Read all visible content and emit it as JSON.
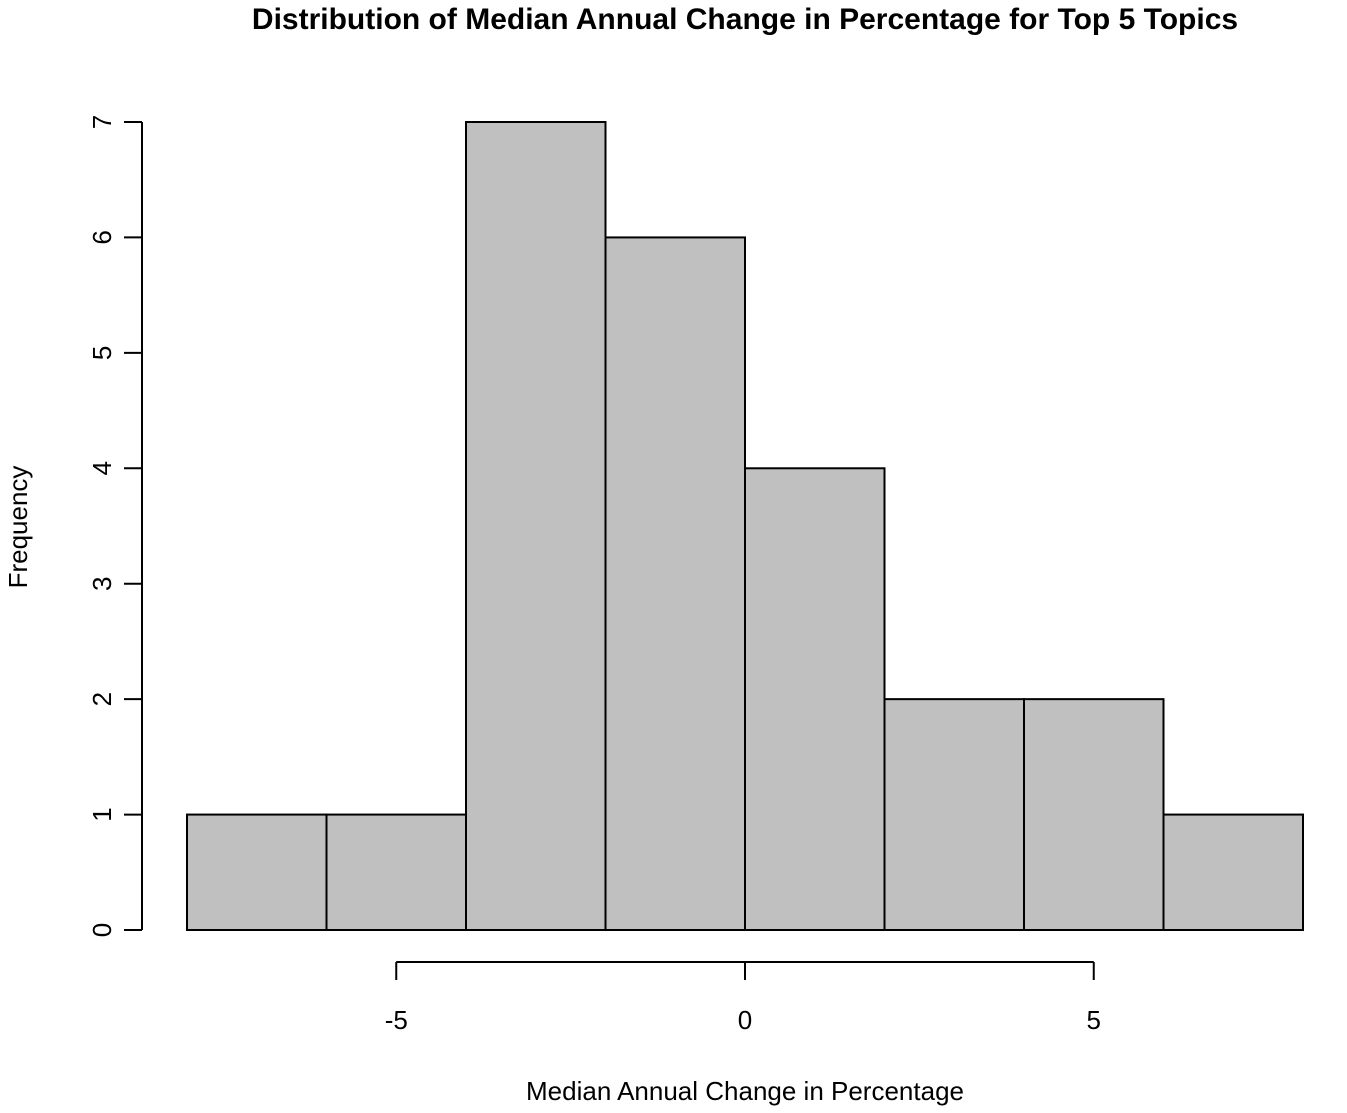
{
  "chart_data": {
    "type": "bar",
    "subtype": "histogram",
    "title": "Distribution of Median Annual Change in Percentage for Top 5 Topics",
    "xlabel": "Median Annual Change in Percentage",
    "ylabel": "Frequency",
    "bins": [
      {
        "from": -8,
        "to": -6,
        "count": 1
      },
      {
        "from": -6,
        "to": -4,
        "count": 1
      },
      {
        "from": -4,
        "to": -2,
        "count": 7
      },
      {
        "from": -2,
        "to": 0,
        "count": 6
      },
      {
        "from": 0,
        "to": 2,
        "count": 4
      },
      {
        "from": 2,
        "to": 4,
        "count": 2
      },
      {
        "from": 4,
        "to": 6,
        "count": 2
      },
      {
        "from": 6,
        "to": 8,
        "count": 1
      }
    ],
    "xlim": [
      -8,
      8
    ],
    "ylim": [
      0,
      7
    ],
    "x_ticks": [
      -5,
      0,
      5
    ],
    "x_tick_labels": [
      "-5",
      "0",
      "5"
    ],
    "y_ticks": [
      0,
      1,
      2,
      3,
      4,
      5,
      6,
      7
    ],
    "y_tick_labels": [
      "0",
      "1",
      "2",
      "3",
      "4",
      "5",
      "6",
      "7"
    ],
    "grid": false,
    "legend": "none",
    "bar_color": "#c0c0c0",
    "edge_color": "#000000"
  }
}
